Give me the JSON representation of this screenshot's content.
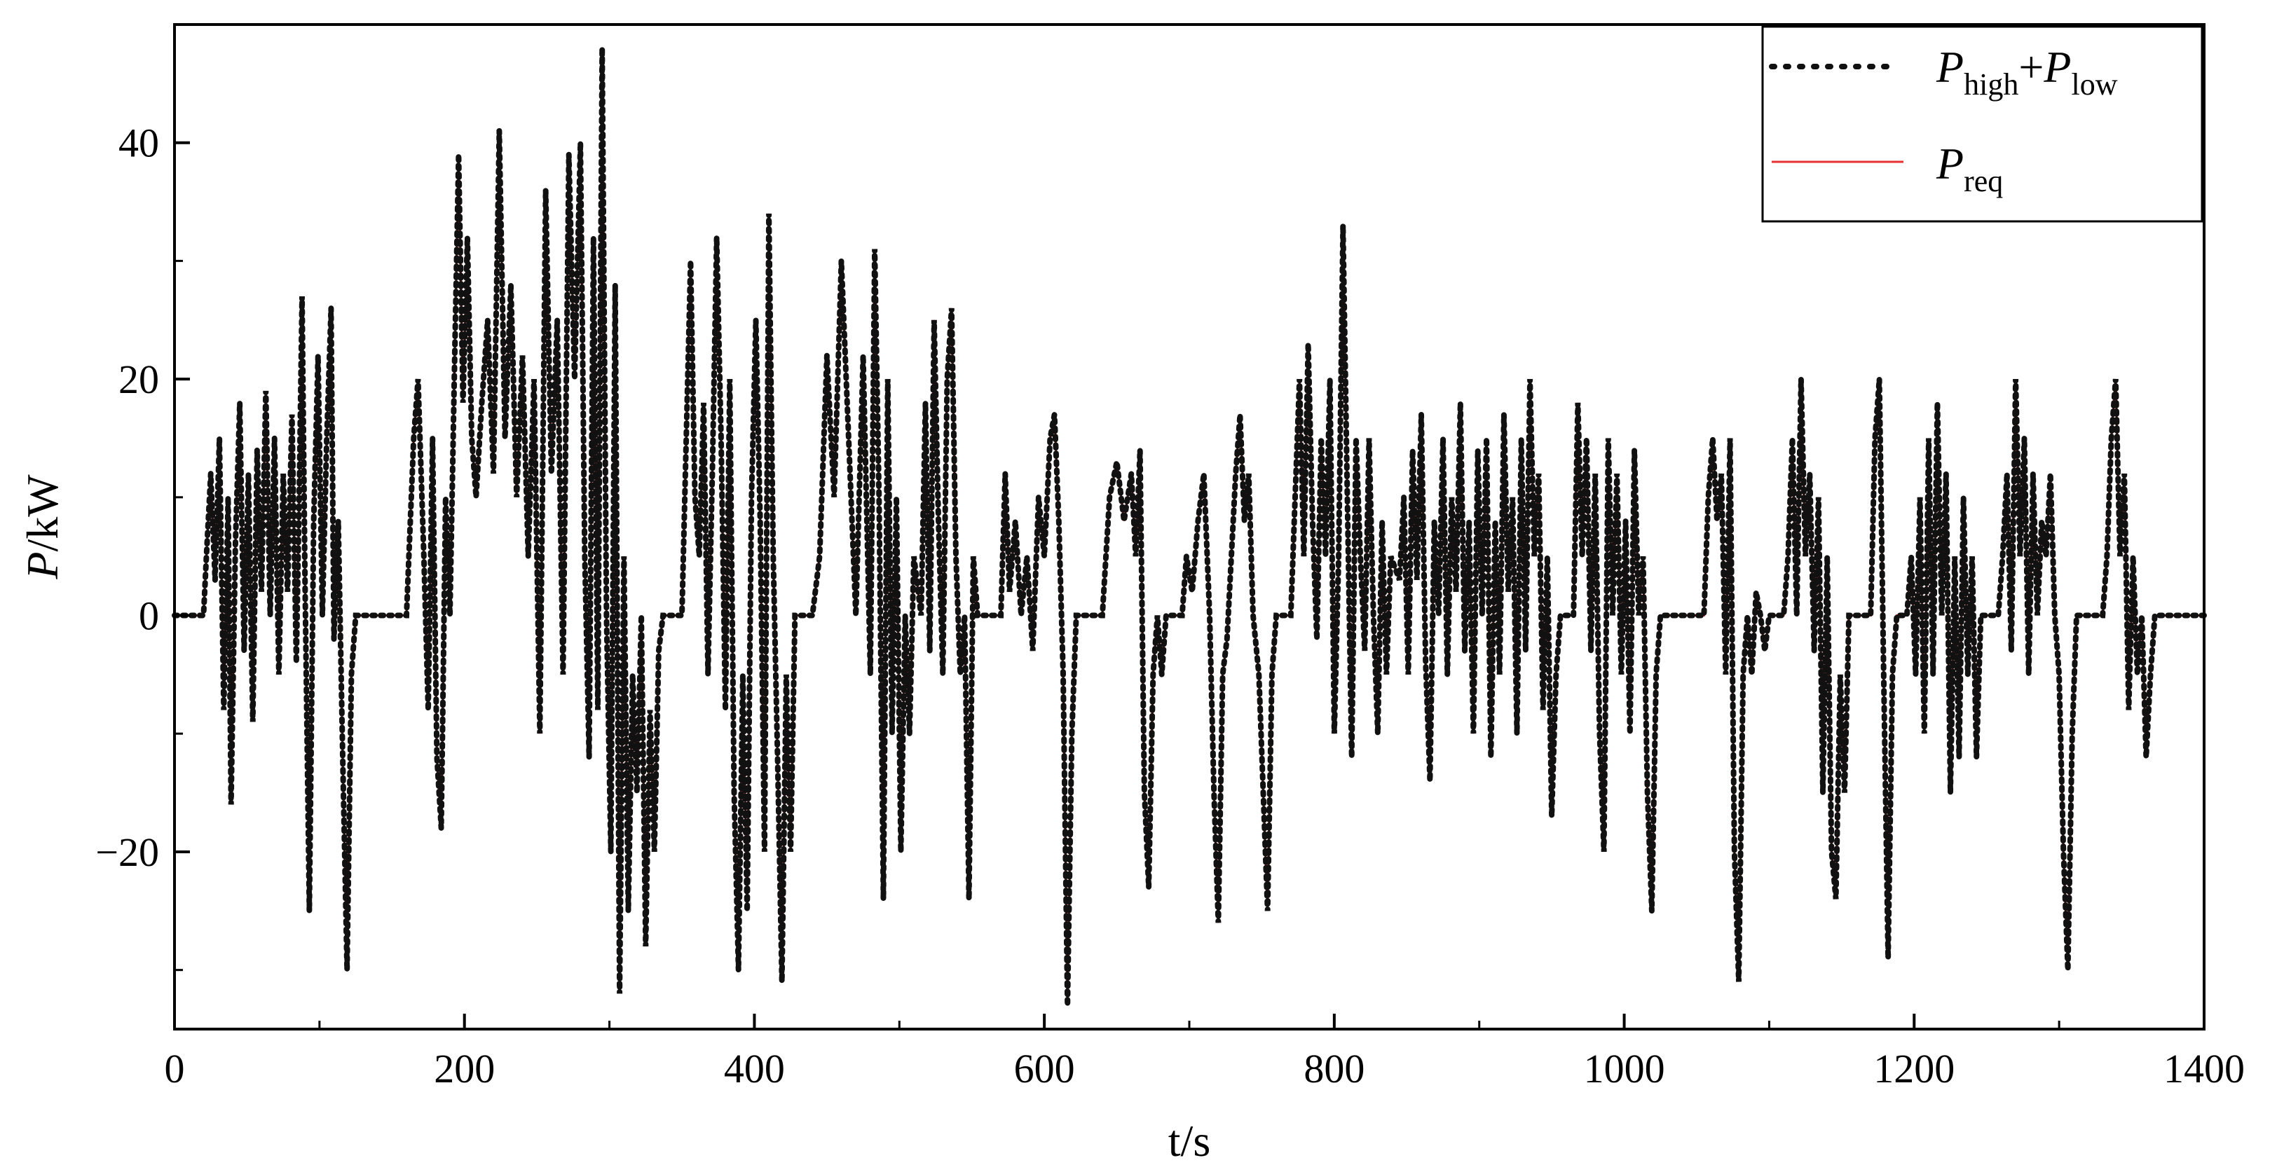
{
  "chart_data": {
    "type": "line",
    "title": "",
    "xlabel": "t/s",
    "ylabel_italic": "P",
    "ylabel_unit": "/kW",
    "xlim": [
      0,
      1400
    ],
    "ylim": [
      -35,
      50
    ],
    "xticks": [
      0,
      200,
      400,
      600,
      800,
      1000,
      1200,
      1400
    ],
    "yticks": [
      -20,
      0,
      20,
      40
    ],
    "ytick_labels": [
      "−20",
      "0",
      "20",
      "40"
    ],
    "grid": false,
    "legend_position": "top-right",
    "series": [
      {
        "legend_main1": "P",
        "legend_sub1": "high",
        "legend_plus": "+",
        "legend_main2": "P",
        "legend_sub2": "low",
        "style": "dotted",
        "color": "#000000"
      },
      {
        "legend_main": "P",
        "legend_sub": "req",
        "style": "solid",
        "color": "#e83030"
      }
    ],
    "keypoints": [
      [
        0,
        0
      ],
      [
        20,
        0
      ],
      [
        22,
        5
      ],
      [
        25,
        12
      ],
      [
        28,
        3
      ],
      [
        31,
        15
      ],
      [
        34,
        -8
      ],
      [
        37,
        10
      ],
      [
        39,
        -16
      ],
      [
        42,
        6
      ],
      [
        45,
        18
      ],
      [
        48,
        -3
      ],
      [
        51,
        12
      ],
      [
        54,
        -9
      ],
      [
        57,
        14
      ],
      [
        60,
        2
      ],
      [
        63,
        19
      ],
      [
        66,
        0
      ],
      [
        69,
        15
      ],
      [
        72,
        -5
      ],
      [
        75,
        12
      ],
      [
        78,
        2
      ],
      [
        81,
        17
      ],
      [
        84,
        -4
      ],
      [
        86,
        10
      ],
      [
        88,
        27
      ],
      [
        90,
        3
      ],
      [
        93,
        -25
      ],
      [
        96,
        8
      ],
      [
        99,
        22
      ],
      [
        102,
        0
      ],
      [
        105,
        15
      ],
      [
        108,
        26
      ],
      [
        110,
        -2
      ],
      [
        113,
        8
      ],
      [
        116,
        -12
      ],
      [
        119,
        -30
      ],
      [
        122,
        -5
      ],
      [
        125,
        0
      ],
      [
        160,
        0
      ],
      [
        165,
        15
      ],
      [
        168,
        20
      ],
      [
        172,
        5
      ],
      [
        175,
        -8
      ],
      [
        178,
        15
      ],
      [
        181,
        -12
      ],
      [
        184,
        -18
      ],
      [
        187,
        10
      ],
      [
        190,
        0
      ],
      [
        193,
        20
      ],
      [
        196,
        39
      ],
      [
        199,
        18
      ],
      [
        202,
        32
      ],
      [
        205,
        15
      ],
      [
        208,
        10
      ],
      [
        212,
        18
      ],
      [
        216,
        25
      ],
      [
        220,
        12
      ],
      [
        224,
        41
      ],
      [
        228,
        15
      ],
      [
        232,
        28
      ],
      [
        236,
        10
      ],
      [
        240,
        22
      ],
      [
        244,
        5
      ],
      [
        248,
        20
      ],
      [
        252,
        -10
      ],
      [
        256,
        36
      ],
      [
        260,
        12
      ],
      [
        264,
        25
      ],
      [
        268,
        -5
      ],
      [
        272,
        39
      ],
      [
        276,
        20
      ],
      [
        280,
        40
      ],
      [
        283,
        5
      ],
      [
        286,
        -12
      ],
      [
        289,
        32
      ],
      [
        292,
        -8
      ],
      [
        295,
        48
      ],
      [
        298,
        0
      ],
      [
        301,
        -20
      ],
      [
        304,
        28
      ],
      [
        307,
        -32
      ],
      [
        310,
        5
      ],
      [
        313,
        -25
      ],
      [
        316,
        -5
      ],
      [
        319,
        -15
      ],
      [
        322,
        0
      ],
      [
        325,
        -28
      ],
      [
        328,
        -8
      ],
      [
        331,
        -20
      ],
      [
        334,
        -3
      ],
      [
        337,
        0
      ],
      [
        350,
        0
      ],
      [
        353,
        15
      ],
      [
        356,
        30
      ],
      [
        359,
        10
      ],
      [
        362,
        5
      ],
      [
        365,
        18
      ],
      [
        368,
        -5
      ],
      [
        371,
        12
      ],
      [
        374,
        32
      ],
      [
        377,
        15
      ],
      [
        380,
        -8
      ],
      [
        383,
        20
      ],
      [
        386,
        -15
      ],
      [
        389,
        -30
      ],
      [
        392,
        -5
      ],
      [
        395,
        -25
      ],
      [
        398,
        10
      ],
      [
        401,
        25
      ],
      [
        404,
        8
      ],
      [
        407,
        -20
      ],
      [
        410,
        34
      ],
      [
        413,
        5
      ],
      [
        416,
        -12
      ],
      [
        419,
        -31
      ],
      [
        422,
        -5
      ],
      [
        425,
        -20
      ],
      [
        428,
        0
      ],
      [
        440,
        0
      ],
      [
        445,
        5
      ],
      [
        450,
        22
      ],
      [
        455,
        10
      ],
      [
        460,
        30
      ],
      [
        465,
        15
      ],
      [
        470,
        0
      ],
      [
        475,
        22
      ],
      [
        480,
        -5
      ],
      [
        483,
        31
      ],
      [
        486,
        10
      ],
      [
        489,
        -24
      ],
      [
        492,
        20
      ],
      [
        495,
        -10
      ],
      [
        498,
        10
      ],
      [
        501,
        -20
      ],
      [
        504,
        0
      ],
      [
        507,
        -10
      ],
      [
        510,
        5
      ],
      [
        515,
        0
      ],
      [
        518,
        18
      ],
      [
        521,
        -3
      ],
      [
        524,
        25
      ],
      [
        527,
        8
      ],
      [
        530,
        -5
      ],
      [
        533,
        20
      ],
      [
        536,
        26
      ],
      [
        539,
        5
      ],
      [
        542,
        -5
      ],
      [
        545,
        0
      ],
      [
        548,
        -24
      ],
      [
        551,
        5
      ],
      [
        554,
        0
      ],
      [
        570,
        0
      ],
      [
        573,
        12
      ],
      [
        576,
        2
      ],
      [
        580,
        8
      ],
      [
        584,
        0
      ],
      [
        588,
        5
      ],
      [
        592,
        -3
      ],
      [
        596,
        10
      ],
      [
        600,
        5
      ],
      [
        604,
        15
      ],
      [
        607,
        17
      ],
      [
        610,
        8
      ],
      [
        613,
        -5
      ],
      [
        616,
        -33
      ],
      [
        619,
        -10
      ],
      [
        622,
        0
      ],
      [
        625,
        0
      ],
      [
        640,
        0
      ],
      [
        645,
        10
      ],
      [
        650,
        13
      ],
      [
        655,
        8
      ],
      [
        660,
        12
      ],
      [
        663,
        5
      ],
      [
        666,
        14
      ],
      [
        669,
        -15
      ],
      [
        672,
        -23
      ],
      [
        675,
        -5
      ],
      [
        678,
        0
      ],
      [
        681,
        -5
      ],
      [
        684,
        0
      ],
      [
        695,
        0
      ],
      [
        698,
        5
      ],
      [
        702,
        2
      ],
      [
        706,
        8
      ],
      [
        710,
        12
      ],
      [
        714,
        0
      ],
      [
        717,
        -15
      ],
      [
        720,
        -26
      ],
      [
        723,
        -5
      ],
      [
        726,
        -2
      ],
      [
        729,
        5
      ],
      [
        732,
        12
      ],
      [
        735,
        17
      ],
      [
        738,
        8
      ],
      [
        741,
        12
      ],
      [
        744,
        0
      ],
      [
        748,
        -5
      ],
      [
        751,
        -15
      ],
      [
        754,
        -25
      ],
      [
        757,
        -5
      ],
      [
        760,
        0
      ],
      [
        763,
        0
      ],
      [
        770,
        0
      ],
      [
        773,
        10
      ],
      [
        776,
        20
      ],
      [
        779,
        5
      ],
      [
        782,
        23
      ],
      [
        785,
        8
      ],
      [
        788,
        -2
      ],
      [
        791,
        15
      ],
      [
        794,
        5
      ],
      [
        797,
        20
      ],
      [
        800,
        -10
      ],
      [
        803,
        5
      ],
      [
        806,
        33
      ],
      [
        809,
        10
      ],
      [
        812,
        -12
      ],
      [
        815,
        15
      ],
      [
        818,
        5
      ],
      [
        821,
        -3
      ],
      [
        824,
        15
      ],
      [
        827,
        0
      ],
      [
        830,
        -10
      ],
      [
        833,
        8
      ],
      [
        836,
        -5
      ],
      [
        839,
        5
      ],
      [
        845,
        3
      ],
      [
        848,
        10
      ],
      [
        851,
        -5
      ],
      [
        854,
        14
      ],
      [
        857,
        3
      ],
      [
        860,
        17
      ],
      [
        863,
        -4
      ],
      [
        866,
        -14
      ],
      [
        869,
        8
      ],
      [
        872,
        0
      ],
      [
        875,
        15
      ],
      [
        878,
        -5
      ],
      [
        881,
        10
      ],
      [
        884,
        2
      ],
      [
        887,
        18
      ],
      [
        890,
        -3
      ],
      [
        893,
        8
      ],
      [
        896,
        -10
      ],
      [
        899,
        14
      ],
      [
        902,
        0
      ],
      [
        905,
        15
      ],
      [
        908,
        -12
      ],
      [
        911,
        8
      ],
      [
        914,
        -5
      ],
      [
        917,
        17
      ],
      [
        920,
        2
      ],
      [
        923,
        10
      ],
      [
        926,
        -10
      ],
      [
        929,
        15
      ],
      [
        932,
        -3
      ],
      [
        935,
        20
      ],
      [
        938,
        5
      ],
      [
        941,
        12
      ],
      [
        944,
        -8
      ],
      [
        947,
        5
      ],
      [
        950,
        -17
      ],
      [
        953,
        -5
      ],
      [
        956,
        0
      ],
      [
        965,
        0
      ],
      [
        968,
        18
      ],
      [
        971,
        5
      ],
      [
        974,
        15
      ],
      [
        977,
        -3
      ],
      [
        980,
        12
      ],
      [
        983,
        -10
      ],
      [
        986,
        -20
      ],
      [
        989,
        15
      ],
      [
        992,
        0
      ],
      [
        995,
        12
      ],
      [
        998,
        -5
      ],
      [
        1001,
        8
      ],
      [
        1004,
        -10
      ],
      [
        1007,
        14
      ],
      [
        1010,
        0
      ],
      [
        1013,
        5
      ],
      [
        1016,
        -15
      ],
      [
        1019,
        -25
      ],
      [
        1022,
        -5
      ],
      [
        1025,
        0
      ],
      [
        1055,
        0
      ],
      [
        1058,
        10
      ],
      [
        1061,
        15
      ],
      [
        1064,
        8
      ],
      [
        1067,
        12
      ],
      [
        1070,
        -5
      ],
      [
        1073,
        15
      ],
      [
        1076,
        -20
      ],
      [
        1079,
        -31
      ],
      [
        1082,
        -5
      ],
      [
        1085,
        0
      ],
      [
        1088,
        -5
      ],
      [
        1091,
        2
      ],
      [
        1094,
        0
      ],
      [
        1097,
        -3
      ],
      [
        1100,
        0
      ],
      [
        1105,
        0
      ],
      [
        1110,
        0
      ],
      [
        1113,
        5
      ],
      [
        1116,
        15
      ],
      [
        1119,
        0
      ],
      [
        1122,
        20
      ],
      [
        1125,
        5
      ],
      [
        1128,
        12
      ],
      [
        1131,
        -3
      ],
      [
        1134,
        10
      ],
      [
        1137,
        -15
      ],
      [
        1140,
        5
      ],
      [
        1143,
        -20
      ],
      [
        1146,
        -24
      ],
      [
        1149,
        -5
      ],
      [
        1152,
        -15
      ],
      [
        1155,
        0
      ],
      [
        1158,
        0
      ],
      [
        1170,
        0
      ],
      [
        1173,
        15
      ],
      [
        1176,
        20
      ],
      [
        1179,
        -5
      ],
      [
        1182,
        -29
      ],
      [
        1185,
        -5
      ],
      [
        1188,
        0
      ],
      [
        1195,
        0
      ],
      [
        1198,
        5
      ],
      [
        1201,
        -5
      ],
      [
        1204,
        10
      ],
      [
        1207,
        -10
      ],
      [
        1210,
        15
      ],
      [
        1213,
        -5
      ],
      [
        1216,
        18
      ],
      [
        1219,
        0
      ],
      [
        1222,
        12
      ],
      [
        1225,
        -15
      ],
      [
        1228,
        5
      ],
      [
        1231,
        -12
      ],
      [
        1234,
        10
      ],
      [
        1237,
        -5
      ],
      [
        1240,
        5
      ],
      [
        1243,
        -12
      ],
      [
        1246,
        0
      ],
      [
        1249,
        0
      ],
      [
        1258,
        0
      ],
      [
        1261,
        5
      ],
      [
        1264,
        12
      ],
      [
        1267,
        -3
      ],
      [
        1270,
        20
      ],
      [
        1273,
        5
      ],
      [
        1276,
        15
      ],
      [
        1279,
        -5
      ],
      [
        1282,
        12
      ],
      [
        1285,
        0
      ],
      [
        1288,
        8
      ],
      [
        1291,
        5
      ],
      [
        1294,
        12
      ],
      [
        1297,
        0
      ],
      [
        1300,
        -5
      ],
      [
        1303,
        -20
      ],
      [
        1306,
        -30
      ],
      [
        1309,
        -10
      ],
      [
        1312,
        0
      ],
      [
        1315,
        0
      ],
      [
        1330,
        0
      ],
      [
        1333,
        5
      ],
      [
        1336,
        15
      ],
      [
        1339,
        20
      ],
      [
        1342,
        5
      ],
      [
        1345,
        12
      ],
      [
        1348,
        -8
      ],
      [
        1351,
        5
      ],
      [
        1354,
        -5
      ],
      [
        1357,
        0
      ],
      [
        1360,
        -12
      ],
      [
        1363,
        -5
      ],
      [
        1366,
        0
      ],
      [
        1400,
        0
      ]
    ]
  }
}
